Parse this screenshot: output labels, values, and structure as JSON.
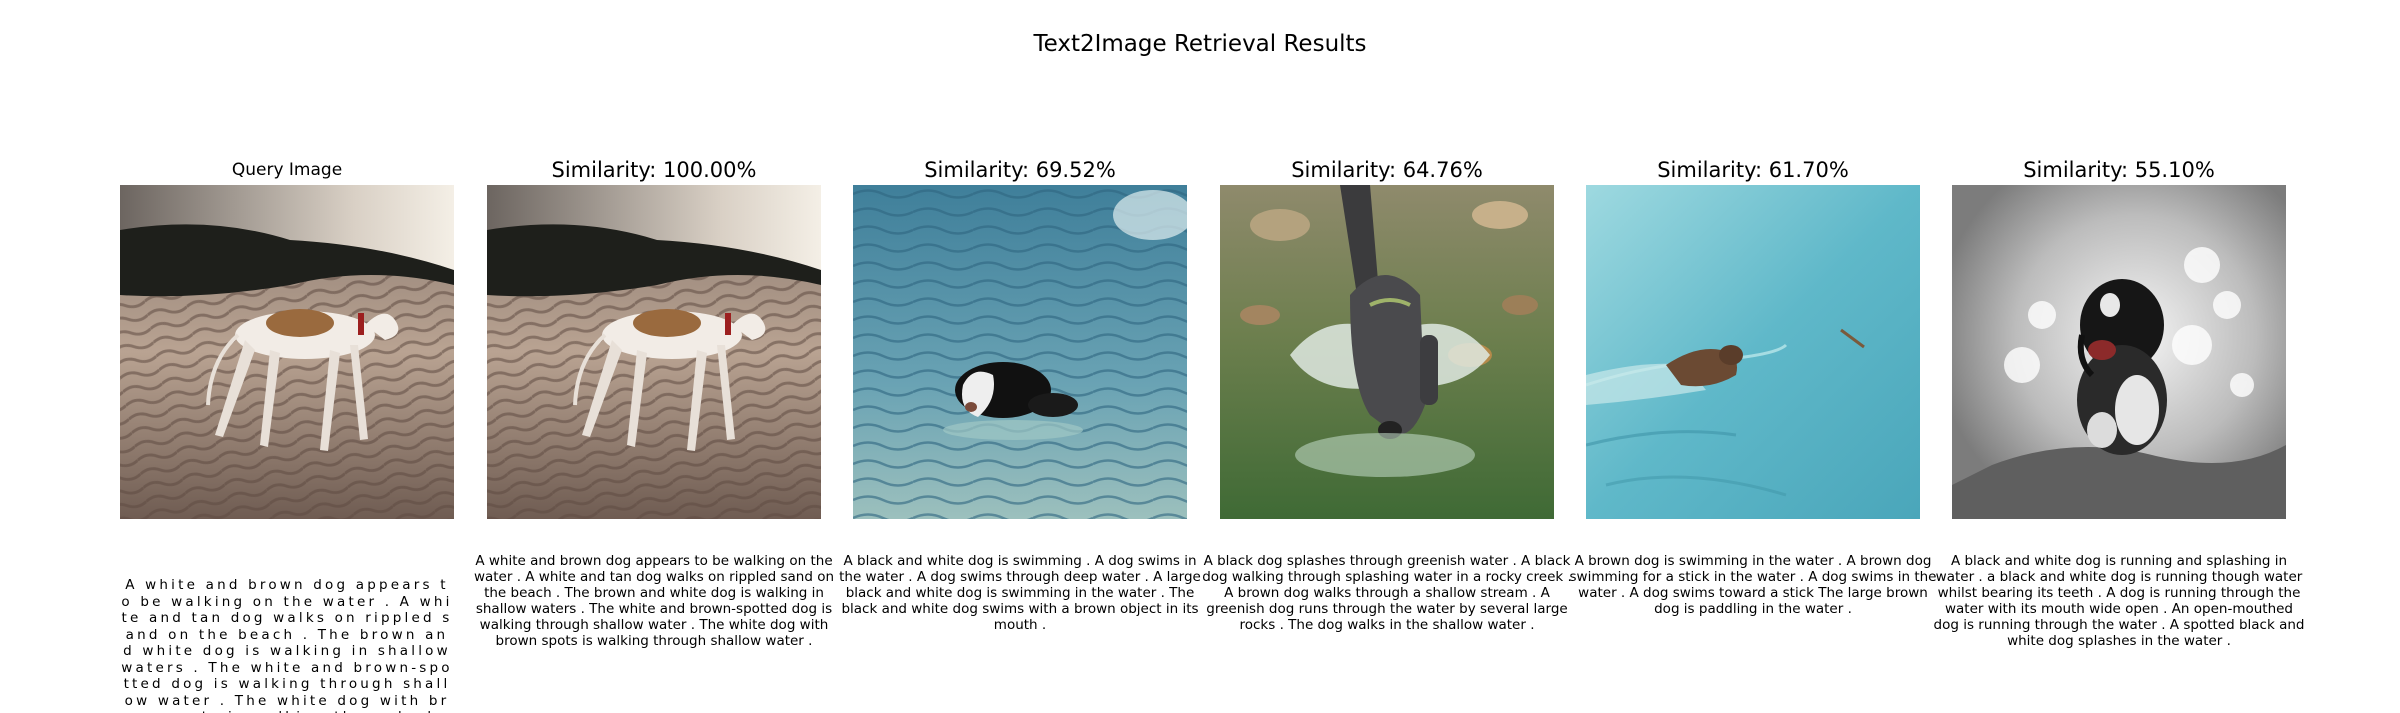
{
  "title": "Text2Image Retrieval Results",
  "query": {
    "label": "Query Image",
    "caption": "A white and brown dog appears to be walking on the water . A white and tan dog walks on rippled sand on the beach . The brown and white dog is walking in shallow waters . The white and brown-spotted dog is walking through shallow water . The white dog with brown spots is walking through shallow water ."
  },
  "results": [
    {
      "label": "Similarity: 100.00%",
      "caption": "A white and brown dog appears to be walking on the water . A white and tan dog walks on rippled sand on the beach . The brown and white dog is walking in shallow waters . The white and brown-spotted dog is walking through shallow water . The white dog with brown spots is walking through shallow water ."
    },
    {
      "label": "Similarity: 69.52%",
      "caption": "A black and white dog is swimming . A dog swims in the water . A dog swims through deep water . A large black and white dog is swimming in the water . The black and white dog swims with a brown object in its mouth ."
    },
    {
      "label": "Similarity: 64.76%",
      "caption": "A black dog splashes through greenish water . A black dog walking through splashing water in a rocky creek . A brown dog walks through a shallow stream . A greenish dog runs through the water by several large rocks . The dog walks in the shallow water ."
    },
    {
      "label": "Similarity: 61.70%",
      "caption": "A brown dog is swimming in the water . A brown dog swimming for a stick in the water . A dog swims in the water . A dog swims toward a stick The large brown dog is paddling in the water ."
    },
    {
      "label": "Similarity: 55.10%",
      "caption": "A black and white dog is running and splashing in water . a black and white dog is running though water whilst bearing its teeth . A dog is running through the water with its mouth wide open . An open-mouthed dog is running through the water . A spotted black and white dog splashes in the water ."
    }
  ]
}
